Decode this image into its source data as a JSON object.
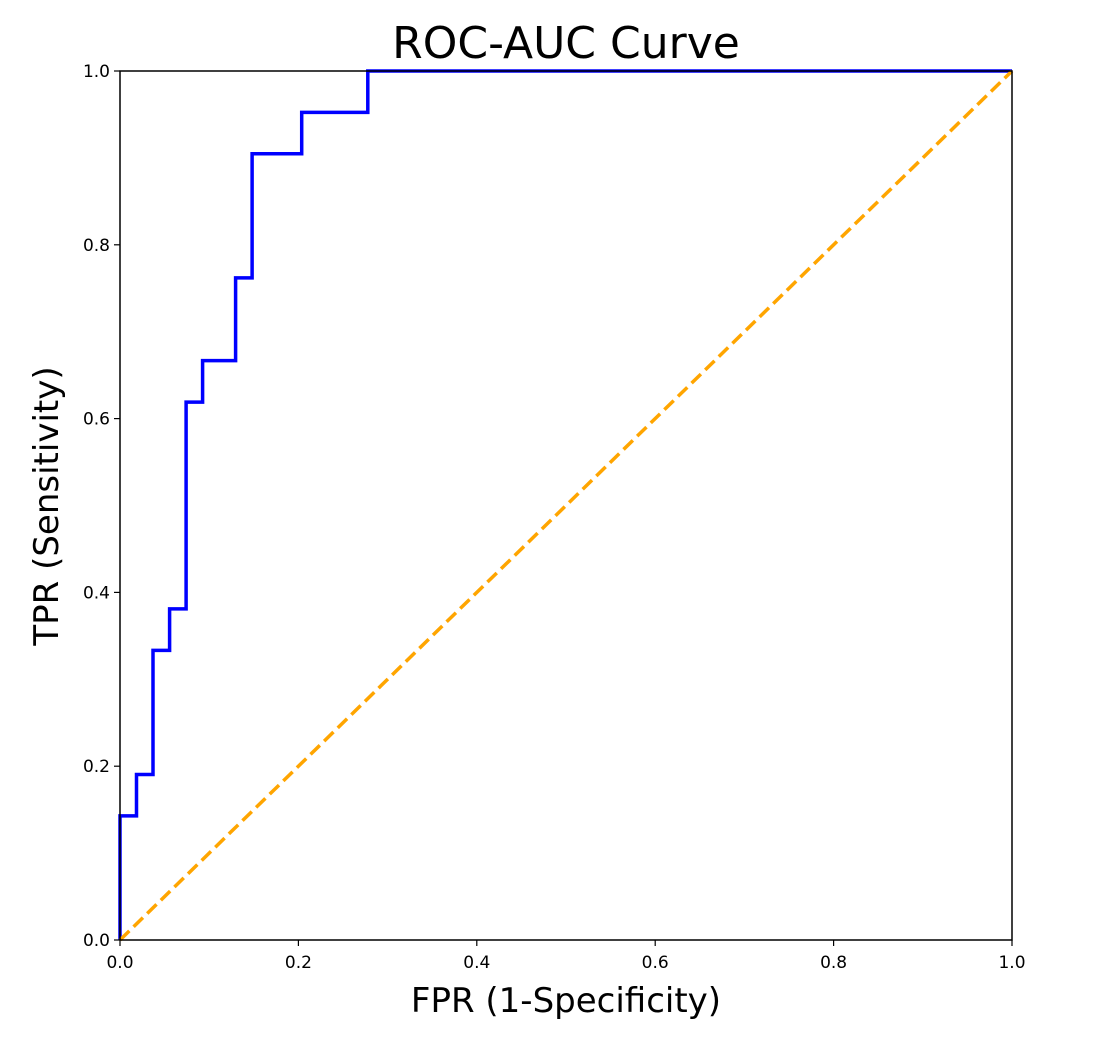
{
  "chart_data": {
    "type": "line",
    "title": "ROC-AUC Curve",
    "xlabel": "FPR (1-Specificity)",
    "ylabel": "TPR (Sensitivity)",
    "xlim": [
      0,
      1
    ],
    "ylim": [
      0,
      1
    ],
    "x_ticks": [
      "0.0",
      "0.2",
      "0.4",
      "0.6",
      "0.8",
      "1.0"
    ],
    "y_ticks": [
      "0.0",
      "0.2",
      "0.4",
      "0.6",
      "0.8",
      "1.0"
    ],
    "grid": false,
    "series": [
      {
        "color": "#0000ff",
        "style": "solid",
        "x": [
          0.0,
          0.0,
          0.0185,
          0.0185,
          0.037,
          0.037,
          0.0556,
          0.0556,
          0.0741,
          0.0741,
          0.0926,
          0.0926,
          0.1296,
          0.1296,
          0.1481,
          0.1481,
          0.2037,
          0.2037,
          0.2778,
          0.2778,
          1.0
        ],
        "y": [
          0.0,
          0.1429,
          0.1429,
          0.1905,
          0.1905,
          0.3333,
          0.3333,
          0.381,
          0.381,
          0.619,
          0.619,
          0.6667,
          0.6667,
          0.7619,
          0.7619,
          0.9048,
          0.9048,
          0.9524,
          0.9524,
          1.0,
          1.0
        ]
      },
      {
        "color": "#ffa500",
        "style": "dashed",
        "x": [
          0.0,
          1.0
        ],
        "y": [
          0.0,
          1.0
        ]
      }
    ]
  }
}
